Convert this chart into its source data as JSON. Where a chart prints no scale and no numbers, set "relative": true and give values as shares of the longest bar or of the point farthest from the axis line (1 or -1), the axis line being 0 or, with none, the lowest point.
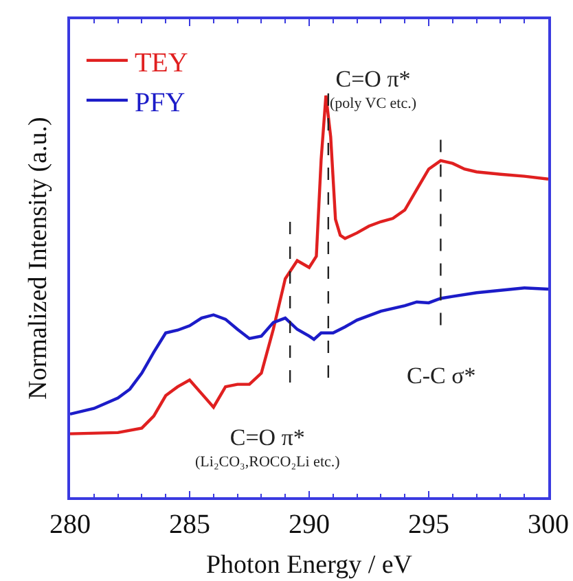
{
  "chart_data": {
    "type": "line",
    "relative": true,
    "xlabel": "Photon Energy / eV",
    "ylabel": "Normalized Intensity (a.u.)",
    "xlim": [
      280,
      300
    ],
    "xticks": [
      280,
      285,
      290,
      295,
      300
    ],
    "grid": false,
    "legend": "top left",
    "marker": "none",
    "line_style": "solid",
    "series": [
      {
        "name": "TEY",
        "color": "#e02020",
        "x": [
          280,
          282,
          283,
          283.5,
          284,
          284.5,
          285,
          285.5,
          286,
          286.5,
          287,
          287.5,
          288,
          288.5,
          289,
          289.5,
          290,
          290.3,
          290.5,
          290.7,
          290.9,
          291.1,
          291.3,
          291.5,
          292,
          292.5,
          293,
          293.5,
          294,
          294.5,
          295,
          295.5,
          296,
          296.5,
          297,
          298,
          299,
          300
        ],
        "values": [
          0.158,
          0.161,
          0.172,
          0.202,
          0.253,
          0.275,
          0.292,
          0.258,
          0.224,
          0.275,
          0.281,
          0.281,
          0.309,
          0.418,
          0.544,
          0.589,
          0.572,
          0.6,
          0.84,
          1.0,
          0.897,
          0.692,
          0.652,
          0.644,
          0.658,
          0.675,
          0.686,
          0.694,
          0.715,
          0.766,
          0.817,
          0.838,
          0.831,
          0.817,
          0.81,
          0.804,
          0.799,
          0.792
        ]
      },
      {
        "name": "PFY",
        "color": "#1c1cc8",
        "x": [
          280,
          281,
          282,
          282.5,
          283,
          283.5,
          284,
          284.5,
          285,
          285.5,
          286,
          286.5,
          287,
          287.5,
          288,
          288.5,
          289,
          289.5,
          290,
          290.2,
          290.5,
          291,
          291.5,
          292,
          293,
          294,
          294.5,
          295,
          295.5,
          296,
          297,
          298,
          299,
          300
        ],
        "values": [
          0.207,
          0.221,
          0.247,
          0.269,
          0.309,
          0.361,
          0.409,
          0.416,
          0.427,
          0.446,
          0.454,
          0.443,
          0.418,
          0.395,
          0.401,
          0.435,
          0.446,
          0.418,
          0.401,
          0.393,
          0.409,
          0.409,
          0.424,
          0.441,
          0.463,
          0.477,
          0.486,
          0.484,
          0.495,
          0.5,
          0.509,
          0.515,
          0.521,
          0.518
        ]
      }
    ],
    "ref_lines": [
      {
        "axis": "x",
        "value": 289.2,
        "label": "C=O π*\n(Li₂CO₃,ROCO₂Li etc.)",
        "color": "#222222",
        "line_style": "dashed"
      },
      {
        "axis": "x",
        "value": 290.8,
        "label": "C=O π*\n(poly VC etc.)",
        "color": "#222222",
        "line_style": "dashed"
      },
      {
        "axis": "x",
        "value": 295.5,
        "label": "C-C σ*",
        "color": "#222222",
        "line_style": "dashed"
      }
    ]
  }
}
